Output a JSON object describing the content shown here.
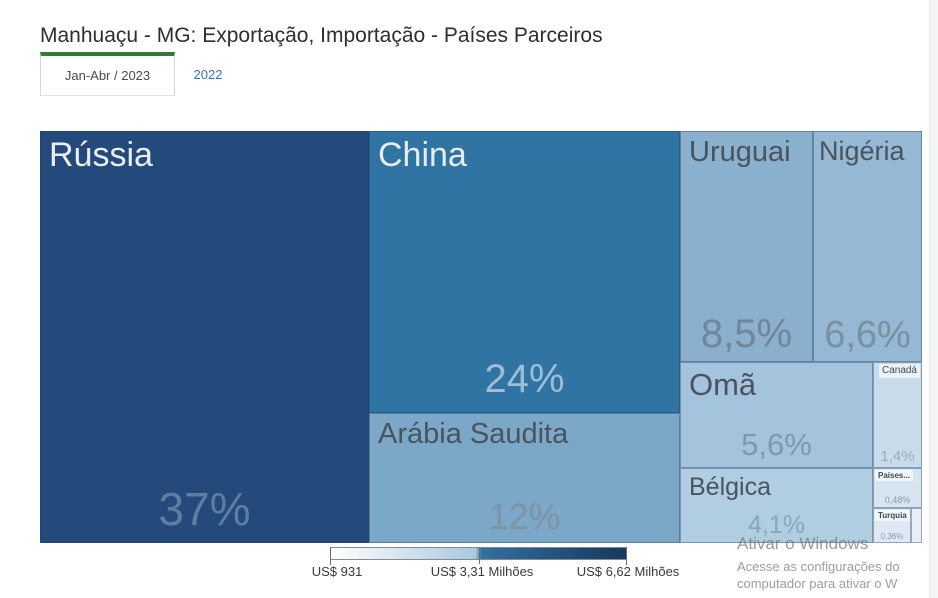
{
  "header": {
    "title": "Manhuaçu - MG: Exportação, Importação - Países Parceiros"
  },
  "tabs": [
    {
      "label": "Jan-Abr / 2023",
      "active": true
    },
    {
      "label": "2022",
      "active": false
    }
  ],
  "theme": {
    "active_tab_accent": "#2e7d32",
    "inactive_tab_link_color": "#2e74b5"
  },
  "chart_data": {
    "type": "treemap",
    "title": "Manhuaçu - MG: Exportação, Importação - Países Parceiros",
    "period": "Jan-Abr / 2023",
    "tiles": [
      {
        "id": "russia",
        "name": "Rússia",
        "pct_label": "37%",
        "share_pct": 37,
        "color": "#24497B",
        "name_color": "#E9EFF5",
        "pct_color": "#5D7DA1"
      },
      {
        "id": "china",
        "name": "China",
        "pct_label": "24%",
        "share_pct": 24,
        "color": "#2F74A2",
        "name_color": "#E6EDF4",
        "pct_color": "#9FBDD4"
      },
      {
        "id": "arabia-saudita",
        "name": "Arábia Saudita",
        "pct_label": "12%",
        "share_pct": 12,
        "color": "#7BA8C8",
        "name_color": "#4A545E",
        "pct_color": "#7E93A4"
      },
      {
        "id": "uruguai",
        "name": "Uruguai",
        "pct_label": "8,5%",
        "share_pct": 8.5,
        "color": "#8AB0CE",
        "name_color": "#4A545E",
        "pct_color": "#70859A"
      },
      {
        "id": "nigeria",
        "name": "Nigéria",
        "pct_label": "6,6%",
        "share_pct": 6.6,
        "color": "#95B9D5",
        "name_color": "#4A545E",
        "pct_color": "#78909F"
      },
      {
        "id": "oma",
        "name": "Omã",
        "pct_label": "5,6%",
        "share_pct": 5.6,
        "color": "#A4C3DC",
        "name_color": "#4A545E",
        "pct_color": "#8098AD"
      },
      {
        "id": "belgica",
        "name": "Bélgica",
        "pct_label": "4,1%",
        "share_pct": 4.1,
        "color": "#B1CDE1",
        "name_color": "#4A545E",
        "pct_color": "#8CA4B9"
      },
      {
        "id": "canada",
        "name": "Canadá",
        "pct_label": "1,4%",
        "share_pct": 1.4,
        "color": "#C9DCEB",
        "name_color": "#3E464E",
        "pct_color": "#97ACBF"
      },
      {
        "id": "paises",
        "name": "Países...",
        "pct_label": "0,48%",
        "share_pct": 0.48,
        "color": "#D7E5F0",
        "name_color": "#3E464E",
        "pct_color": "#8A99A8"
      },
      {
        "id": "turquia",
        "name": "Turquia",
        "pct_label": "0,36%",
        "share_pct": 0.36,
        "color": "#DEE9F3",
        "name_color": "#3E464E",
        "pct_color": "#8A99A8"
      },
      {
        "id": "other",
        "name": "",
        "pct_label": "",
        "share_pct": null,
        "color": "#E7EEF6",
        "name_color": "#3E464E",
        "pct_color": "#8A99A8"
      }
    ],
    "legend": {
      "min_label": "US$ 931",
      "mid_label": "US$ 3,31 Milhões",
      "max_label": "US$ 6,62 Milhões",
      "gradient": [
        "#FFFFFF",
        "#A7C9E0",
        "#336F9F",
        "#16395F"
      ],
      "position": "bottom-center"
    }
  },
  "watermark": {
    "line1": "Ativar o Windows",
    "line2": "Acesse as configurações do",
    "line3": "computador para ativar o W"
  }
}
